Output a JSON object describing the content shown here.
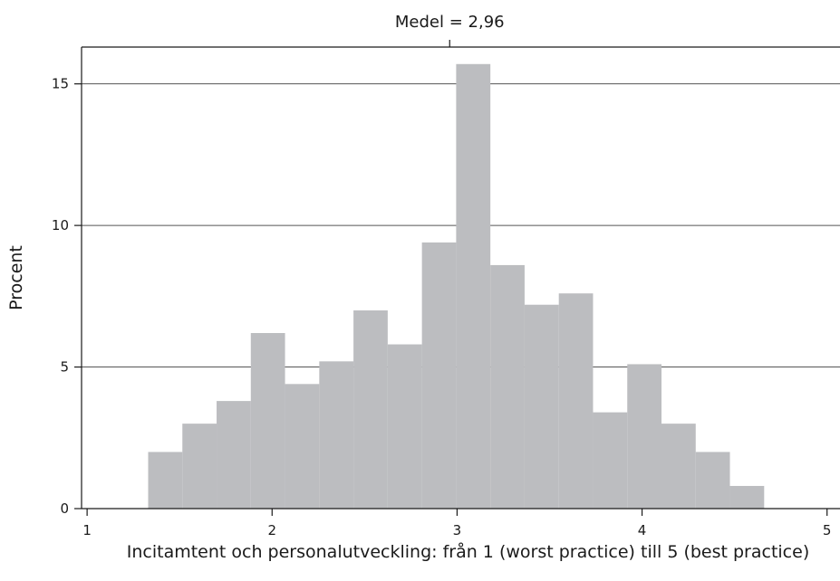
{
  "chart_data": {
    "type": "bar",
    "title": "",
    "xlabel": "Incitamtent och personalutveckling: från 1 (worst practice) till 5 (best practice)",
    "ylabel": "Procent",
    "xlim": [
      1,
      5
    ],
    "ylim": [
      0,
      15.8
    ],
    "xticks": [
      1,
      2,
      3,
      4,
      5
    ],
    "yticks": [
      0,
      5,
      10,
      15
    ],
    "grid": "horizontal",
    "bar_color": "#bcbdc0",
    "bin_width": 0.185,
    "bins": [
      {
        "x": 1.33,
        "value": 2.0
      },
      {
        "x": 1.515,
        "value": 3.0
      },
      {
        "x": 1.7,
        "value": 3.8
      },
      {
        "x": 1.885,
        "value": 6.2
      },
      {
        "x": 2.07,
        "value": 4.4
      },
      {
        "x": 2.255,
        "value": 5.2
      },
      {
        "x": 2.44,
        "value": 7.0
      },
      {
        "x": 2.625,
        "value": 5.8
      },
      {
        "x": 2.81,
        "value": 9.4
      },
      {
        "x": 2.995,
        "value": 15.7
      },
      {
        "x": 3.18,
        "value": 8.6
      },
      {
        "x": 3.365,
        "value": 7.2
      },
      {
        "x": 3.55,
        "value": 7.6
      },
      {
        "x": 3.735,
        "value": 3.4
      },
      {
        "x": 3.92,
        "value": 5.1
      },
      {
        "x": 4.105,
        "value": 3.0
      },
      {
        "x": 4.29,
        "value": 2.0
      },
      {
        "x": 4.475,
        "value": 0.8
      }
    ],
    "mean": {
      "value": 2.96,
      "label": "Medel = 2,96"
    }
  }
}
